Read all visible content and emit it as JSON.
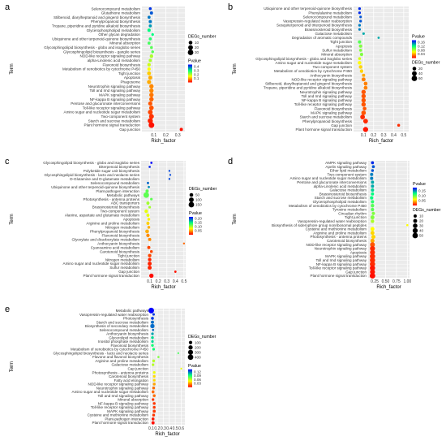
{
  "figure": {
    "background": "#ffffff"
  },
  "colors": {
    "panel_bg": "#ebebeb",
    "grid": "#ffffff",
    "text": "#333333",
    "gradient_low_pvalue": "#ff0000",
    "gradient_mid": "#ffff00",
    "gradient_mid2": "#00ff80",
    "gradient_high_pvalue": "#0000ff"
  },
  "chart_data": [
    {
      "panel": "a",
      "type": "scatter",
      "xlabel": "Rich_factor",
      "ylabel": "Term",
      "xlim": [
        0.0,
        0.36
      ],
      "x_ticks": [
        0.1,
        0.2,
        0.3
      ],
      "x_tick_labels": [
        "0.1",
        "0.2",
        "0.3"
      ],
      "size_legend": {
        "title": "DEGs_number",
        "values": [
          10,
          20,
          30
        ]
      },
      "color_legend": {
        "title": "Pvalue",
        "values": [
          0.1,
          0.2,
          0.3,
          0.4
        ],
        "labels": [
          "0.4",
          "0.3",
          "0.2",
          "0.1"
        ],
        "range": [
          0.0,
          0.45
        ]
      },
      "terms": [
        "Selenocompound metabolism",
        "Glutathione metabolism",
        "Stilbenoid, diarylheptanoid and gingerol biosynthesis",
        "Phenylpropanoid biosynthesis",
        "Tropane, piperidine and pyridine alkaloid biosynthesis",
        "Glycerophospholipid metabolism",
        "Other glycan degradation",
        "Ubiquinone and other terpenoid-quinone biosynthesis",
        "Mineral absorption",
        "Glycosphingolipid biosynthesis - globo and isoglobo series",
        "Glycosphingolipid biosynthesis - ganglio series",
        "NOD-like receptor signaling pathway",
        "alpha-Linolenic acid metabolism",
        "Flavonoid biosynthesis",
        "Metabolism of xenobiotics by cytochrome P450",
        "Tight junction",
        "Apoptosis",
        "Phagosome",
        "Neurotrophin signaling pathway",
        "Toll and Imd signaling pathway",
        "MAPK signaling pathway",
        "NF-kappa B signaling pathway",
        "Pentose and glucuronate interconversions",
        "Toll-like receptor signaling pathway",
        "Amino sugar and nucleotide sugar metabolism",
        "Two-component system",
        "Starch and sucrose metabolism",
        "Plant hormone signal transduction",
        "Gap junction"
      ],
      "rich_factor": [
        0.07,
        0.08,
        0.06,
        0.07,
        0.07,
        0.06,
        0.09,
        0.07,
        0.06,
        0.08,
        0.09,
        0.08,
        0.07,
        0.06,
        0.06,
        0.06,
        0.07,
        0.06,
        0.08,
        0.08,
        0.08,
        0.08,
        0.07,
        0.08,
        0.07,
        0.08,
        0.07,
        0.08,
        0.33
      ],
      "pvalue": [
        0.42,
        0.4,
        0.38,
        0.38,
        0.36,
        0.3,
        0.3,
        0.28,
        0.26,
        0.25,
        0.25,
        0.2,
        0.2,
        0.18,
        0.15,
        0.12,
        0.1,
        0.1,
        0.08,
        0.08,
        0.07,
        0.06,
        0.05,
        0.05,
        0.04,
        0.03,
        0.02,
        0.01,
        0.01
      ],
      "degs_number": [
        4,
        6,
        5,
        6,
        5,
        7,
        3,
        5,
        5,
        4,
        4,
        8,
        6,
        8,
        8,
        12,
        12,
        14,
        16,
        16,
        17,
        17,
        14,
        18,
        20,
        22,
        25,
        32,
        6
      ]
    },
    {
      "panel": "b",
      "type": "scatter",
      "xlabel": "Rich_factor",
      "ylabel": "Term",
      "xlim": [
        0.0,
        0.55
      ],
      "x_ticks": [
        0.1,
        0.2,
        0.3,
        0.4,
        0.5
      ],
      "x_tick_labels": [
        "0.1",
        "0.2",
        "0.3",
        "0.4",
        "0.5"
      ],
      "size_legend": {
        "title": "DEGs_number",
        "values": [
          20,
          40,
          60
        ]
      },
      "color_legend": {
        "title": "Pvalue",
        "values": [
          0.04,
          0.08,
          0.12,
          0.16
        ],
        "labels": [
          "0.16",
          "0.12",
          "0.08",
          "0.04"
        ],
        "range": [
          0.0,
          0.18
        ]
      },
      "terms": [
        "Ubiquinone and other terpenoid-quinone biosynthesis",
        "Phenylalanine metabolism",
        "Selenocompound metabolism",
        "Vasopressin-regulated water reabsorption",
        "Sesquiterpenoid and triterpenoid biosynthesis",
        "Brassinosteroid biosynthesis",
        "Galactose metabolism",
        "Degradation of aromatic compounds",
        "Tight junction",
        "Apoptosis",
        "Sulfur metabolism",
        "Mineral absorption",
        "Glycosphingolipid biosynthesis - globo and isoglobo series",
        "Amino sugar and nucleotide sugar metabolism",
        "Two-component system",
        "Metabolism of xenobiotics by cytochrome P450",
        "Anthocyanin biosynthesis",
        "NOD-like receptor signaling pathway",
        "Stilbenoid, diarylheptanoid and gingerol biosynthesis",
        "Tropane, piperidine and pyridine alkaloid biosynthesis",
        "Neurotrophin signaling pathway",
        "Toll and Imd signaling pathway",
        "NF-kappa B signaling pathway",
        "Toll-like receptor signaling pathway",
        "Flavonoid biosynthesis",
        "MAPK signaling pathway",
        "Starch and sucrose metabolism",
        "Phenylpropanoid biosynthesis",
        "Gap junction",
        "Plant hormone signal transduction"
      ],
      "rich_factor": [
        0.06,
        0.06,
        0.07,
        0.07,
        0.06,
        0.06,
        0.1,
        0.25,
        0.06,
        0.07,
        0.07,
        0.08,
        0.06,
        0.06,
        0.07,
        0.08,
        0.1,
        0.1,
        0.12,
        0.12,
        0.1,
        0.1,
        0.1,
        0.1,
        0.11,
        0.1,
        0.09,
        0.12,
        0.45,
        0.12
      ],
      "pvalue": [
        0.17,
        0.17,
        0.16,
        0.16,
        0.15,
        0.15,
        0.14,
        0.14,
        0.1,
        0.09,
        0.09,
        0.09,
        0.07,
        0.06,
        0.05,
        0.05,
        0.04,
        0.03,
        0.03,
        0.03,
        0.02,
        0.02,
        0.02,
        0.02,
        0.02,
        0.02,
        0.01,
        0.01,
        0.01,
        0.005
      ],
      "degs_number": [
        6,
        6,
        5,
        6,
        6,
        5,
        5,
        3,
        14,
        14,
        10,
        14,
        8,
        18,
        18,
        16,
        12,
        24,
        22,
        22,
        32,
        32,
        32,
        32,
        20,
        36,
        40,
        40,
        8,
        50
      ]
    },
    {
      "panel": "c",
      "type": "scatter",
      "xlabel": "Rich_factor",
      "ylabel": "Term",
      "xlim": [
        0.0,
        0.52
      ],
      "x_ticks": [
        0.1,
        0.2,
        0.3,
        0.4,
        0.5
      ],
      "x_tick_labels": [
        "0.1",
        "0.2",
        "0.3",
        "0.4",
        "0.5"
      ],
      "size_legend": {
        "title": "DEGs_number",
        "values": [
          50,
          100,
          150
        ]
      },
      "color_legend": {
        "title": "Pvalue",
        "values": [
          0.05,
          0.1,
          0.15,
          0.2
        ],
        "labels": [
          "0.20",
          "0.15",
          "0.10",
          "0.05"
        ],
        "range": [
          0.0,
          0.22
        ]
      },
      "terms": [
        "Glycosphingolipid biosynthesis - globo and isoglobo series",
        "Diterpenoid biosynthesis",
        "Polyketide sugar unit biosynthesis",
        "Glycosphingolipid biosynthesis - lacto and neolacto series",
        "D-Glutamine and D-glutamate metabolism",
        "Selenocompound metabolism",
        "Ubiquinone and other terpenoid-quinone biosynthesis",
        "Plant-pathogen interaction",
        "Metabolic pathways",
        "Photosynthesis - antenna proteins",
        "ABC transporters",
        "Brassinosteroid biosynthesis",
        "Two-component system",
        "Alanine, aspartate and glutamate metabolism",
        "Apoptosis",
        "Arginine and proline metabolism",
        "Nitrogen metabolism",
        "Phenylpropanoid biosynthesis",
        "Flavonoid biosynthesis",
        "Glyoxylate and dicarboxylate metabolism",
        "Anthocyanin biosynthesis",
        "Cyanoamino acid metabolism",
        "Carotenoid biosynthesis",
        "Tight junction",
        "Nitrogen metabolism",
        "Amino sugar and nucleotide sugar metabolism",
        "Sulfur metabolism",
        "Gap junction",
        "Plant hormone signal transduction"
      ],
      "rich_factor": [
        0.12,
        0.1,
        0.33,
        0.34,
        0.33,
        0.08,
        0.09,
        0.07,
        0.06,
        0.12,
        0.08,
        0.1,
        0.06,
        0.08,
        0.09,
        0.08,
        0.09,
        0.07,
        0.08,
        0.1,
        0.5,
        0.09,
        0.12,
        0.1,
        0.1,
        0.1,
        0.1,
        0.4,
        0.12
      ],
      "pvalue": [
        0.22,
        0.21,
        0.2,
        0.2,
        0.2,
        0.19,
        0.18,
        0.12,
        0.12,
        0.12,
        0.1,
        0.1,
        0.08,
        0.08,
        0.07,
        0.06,
        0.05,
        0.05,
        0.04,
        0.04,
        0.03,
        0.02,
        0.02,
        0.02,
        0.01,
        0.01,
        0.01,
        0.005,
        0.003
      ],
      "degs_number": [
        6,
        6,
        3,
        3,
        3,
        10,
        8,
        30,
        150,
        14,
        30,
        14,
        40,
        30,
        20,
        30,
        20,
        50,
        40,
        30,
        4,
        30,
        20,
        40,
        40,
        60,
        60,
        8,
        80
      ]
    },
    {
      "panel": "d",
      "type": "scatter",
      "xlabel": "Rich_factor",
      "ylabel": "Term",
      "xlim": [
        0.1,
        1.05
      ],
      "x_ticks": [
        0.25,
        0.5,
        0.75,
        1.0
      ],
      "x_tick_labels": [
        "0.25",
        "0.50",
        "0.75",
        "1.00"
      ],
      "size_legend": {
        "title": "DEGs_number",
        "values": [
          10,
          20,
          30,
          40,
          50
        ]
      },
      "color_legend": {
        "title": "Pvalue",
        "values": [
          0.05,
          0.1,
          0.15
        ],
        "labels": [
          "0.15",
          "0.10",
          "0.05"
        ],
        "range": [
          0.0,
          0.18
        ]
      },
      "terms": [
        "AMPK signaling pathway",
        "Apelin signaling pathway",
        "Ether lipid metabolism",
        "Two-component system",
        "Amino sugar and nucleotide sugar metabolism",
        "Pentose and glucuronate interconversions",
        "alpha-Linolenic acid metabolism",
        "Galactose metabolism",
        "Brassinosteroid biosynthesis",
        "Starch and sucrose metabolism",
        "Glycerophospholipid metabolism",
        "Metabolism of xenobiotics by cytochrome P450",
        "Tyrosine metabolism",
        "Circadian rhythm",
        "Tight junction",
        "Vasopressin-regulated water reabsorption",
        "Biosynthesis of siderophore group nonribosomal peptides",
        "Cysteine and methionine metabolism",
        "Arginine and proline metabolism",
        "Photosynthesis - antenna proteins",
        "Carotenoid biosynthesis",
        "NOD-like receptor signaling pathway",
        "Neurotrophin signaling pathway",
        "Apoptosis",
        "MAPK signaling pathway",
        "Toll and Imd signaling pathway",
        "NF-kappa B signaling pathway",
        "Toll-like receptor signaling pathway",
        "Gap junction",
        "Plant hormone signal transduction"
      ],
      "rich_factor": [
        0.2,
        0.22,
        0.2,
        0.18,
        0.18,
        0.2,
        0.2,
        0.2,
        0.2,
        0.18,
        0.2,
        0.2,
        0.2,
        0.22,
        0.2,
        0.2,
        1.0,
        0.2,
        0.2,
        0.22,
        0.2,
        0.2,
        0.2,
        0.2,
        0.2,
        0.2,
        0.2,
        0.2,
        0.2,
        0.2
      ],
      "pvalue": [
        0.17,
        0.16,
        0.16,
        0.15,
        0.15,
        0.14,
        0.14,
        0.13,
        0.12,
        0.12,
        0.11,
        0.1,
        0.1,
        0.09,
        0.09,
        0.08,
        0.06,
        0.06,
        0.05,
        0.05,
        0.04,
        0.02,
        0.01,
        0.01,
        0.01,
        0.01,
        0.01,
        0.005,
        0.005,
        0.003
      ],
      "degs_number": [
        8,
        8,
        6,
        10,
        10,
        10,
        10,
        12,
        10,
        12,
        12,
        14,
        12,
        12,
        20,
        14,
        2,
        20,
        20,
        22,
        22,
        35,
        40,
        40,
        45,
        45,
        45,
        45,
        40,
        50
      ]
    },
    {
      "panel": "e",
      "type": "scatter",
      "xlabel": "Rich_factor",
      "ylabel": "Term",
      "xlim": [
        0.08,
        0.66
      ],
      "x_ticks": [
        0.1,
        0.2,
        0.3,
        0.4,
        0.5,
        0.6
      ],
      "x_tick_labels": [
        "0.1",
        "0.2",
        "0.3",
        "0.4",
        "0.5",
        "0.6"
      ],
      "size_legend": {
        "title": "DEGs_number",
        "values": [
          100,
          200,
          300,
          400
        ]
      },
      "color_legend": {
        "title": "Pvalue",
        "values": [
          0.03,
          0.06,
          0.09,
          0.12
        ],
        "labels": [
          "0.12",
          "0.09",
          "0.06",
          "0.03"
        ],
        "range": [
          0.0,
          0.14
        ]
      },
      "terms": [
        "Metabolic pathways",
        "Vasopressin-regulated water reabsorption",
        "Photosynthesis",
        "Starch and sucrose metabolism",
        "Biosynthesis of secondary metabolites",
        "Selenocompound metabolism",
        "Anthocyanin biosynthesis",
        "Glycerolipid metabolism",
        "Inositol phosphate metabolism",
        "Flavonoid biosynthesis",
        "Metabolism of xenobiotics by cytochrome P450",
        "Glycosphingolipid biosynthesis - lacto and neolacto series",
        "Flavone and flavonol biosynthesis",
        "Arginine and proline metabolism",
        "Galactose metabolism",
        "Cap junction",
        "Photosynthesis - antenna proteins",
        "Carotenoid biosynthesis",
        "Fatty acid elongation",
        "NOD-like receptor signaling pathway",
        "Neurotrophin signaling pathway",
        "Amino sugar and nucleotide sugar metabolism",
        "Toll and Imd signaling pathway",
        "Mineral absorption",
        "NF-kappa B signaling pathway",
        "Toll-like receptor signaling pathway",
        "MAPK signaling pathway",
        "Cysteine and methionine metabolism",
        "Plant-pathogen interaction",
        "Plant hormone signal transduction"
      ],
      "rich_factor": [
        0.1,
        0.14,
        0.12,
        0.12,
        0.12,
        0.13,
        0.12,
        0.12,
        0.12,
        0.12,
        0.14,
        0.55,
        0.22,
        0.14,
        0.13,
        0.6,
        0.15,
        0.15,
        0.15,
        0.15,
        0.14,
        0.13,
        0.15,
        0.13,
        0.15,
        0.15,
        0.15,
        0.14,
        0.13,
        0.13
      ],
      "pvalue": [
        0.14,
        0.13,
        0.13,
        0.12,
        0.12,
        0.12,
        0.11,
        0.1,
        0.1,
        0.09,
        0.09,
        0.08,
        0.07,
        0.06,
        0.06,
        0.05,
        0.05,
        0.04,
        0.04,
        0.03,
        0.02,
        0.02,
        0.02,
        0.01,
        0.01,
        0.01,
        0.01,
        0.01,
        0.005,
        0.003
      ],
      "degs_number": [
        420,
        30,
        60,
        80,
        200,
        20,
        40,
        50,
        40,
        50,
        40,
        5,
        15,
        50,
        40,
        5,
        40,
        40,
        40,
        50,
        50,
        60,
        50,
        40,
        50,
        50,
        60,
        50,
        60,
        80
      ]
    }
  ]
}
